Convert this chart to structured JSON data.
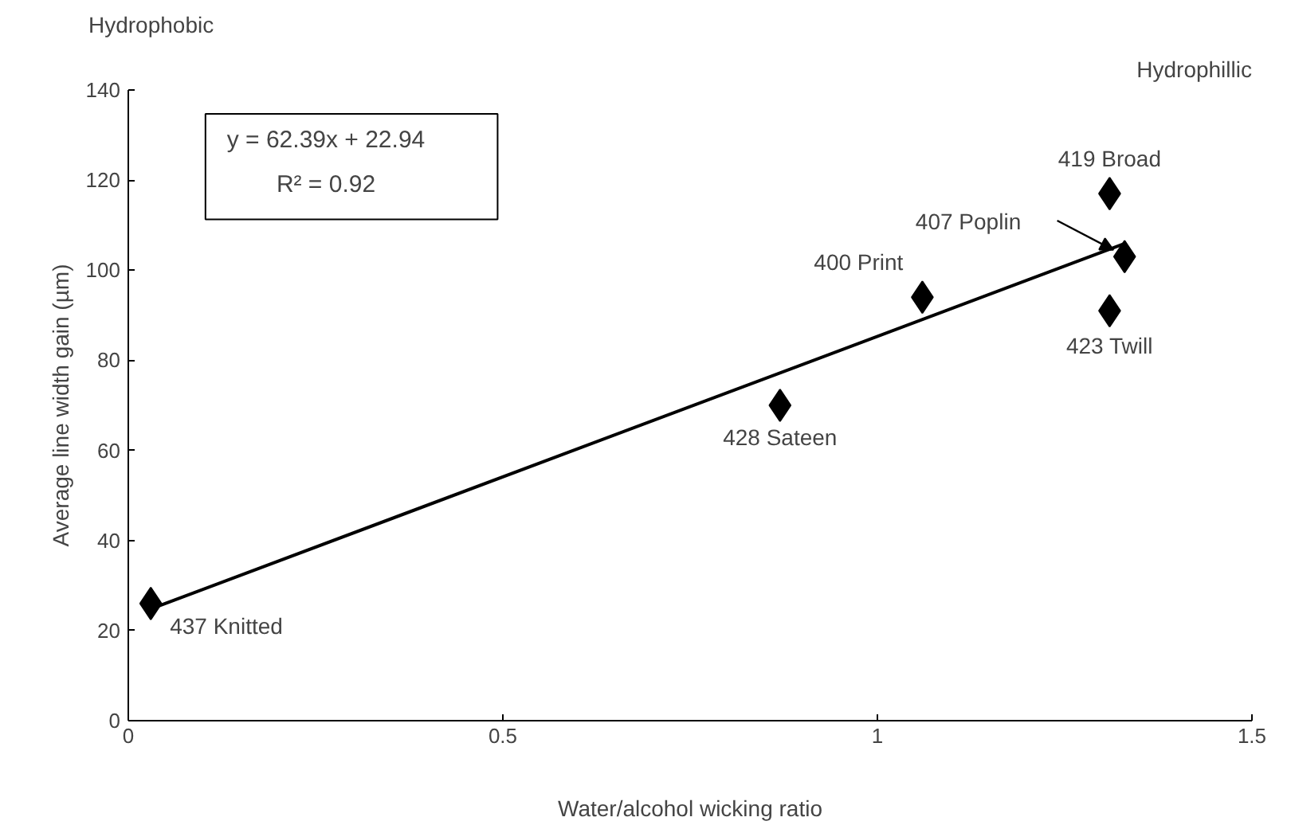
{
  "chart_data": {
    "type": "scatter",
    "xlabel": "Water/alcohol wicking ratio",
    "ylabel": "Average line width gain (µm)",
    "xlim": [
      0,
      1.5
    ],
    "xticks": [
      0,
      0.5,
      1,
      1.5
    ],
    "ylim": [
      0,
      140
    ],
    "yticks": [
      0,
      20,
      40,
      60,
      80,
      100,
      120,
      140
    ],
    "grid": false,
    "series": [
      {
        "marker": "diamond",
        "color": "#000000",
        "x": [
          0.03,
          0.87,
          1.06,
          1.31,
          1.33,
          1.31
        ],
        "values": [
          26,
          70,
          94,
          117,
          103,
          91
        ]
      },
      {
        "type": "line",
        "marker": "none",
        "color": "#000000",
        "x": [
          0.03,
          1.33
        ],
        "values": [
          24.8,
          105.9
        ]
      }
    ],
    "annotations": [
      "Hydrophobic",
      "Hydrophillic",
      "y = 62.39x + 22.94",
      "R² = 0.92",
      "407 Poplin",
      {
        "text": "437 Knitted",
        "x": 0.03,
        "y": 26
      },
      {
        "text": "428 Sateen",
        "x": 0.87,
        "y": 70
      },
      {
        "text": "400 Print",
        "x": 1.06,
        "y": 94
      },
      {
        "text": "419 Broad",
        "x": 1.31,
        "y": 117
      },
      {
        "text": "423 Twill",
        "x": 1.31,
        "y": 91
      }
    ]
  }
}
